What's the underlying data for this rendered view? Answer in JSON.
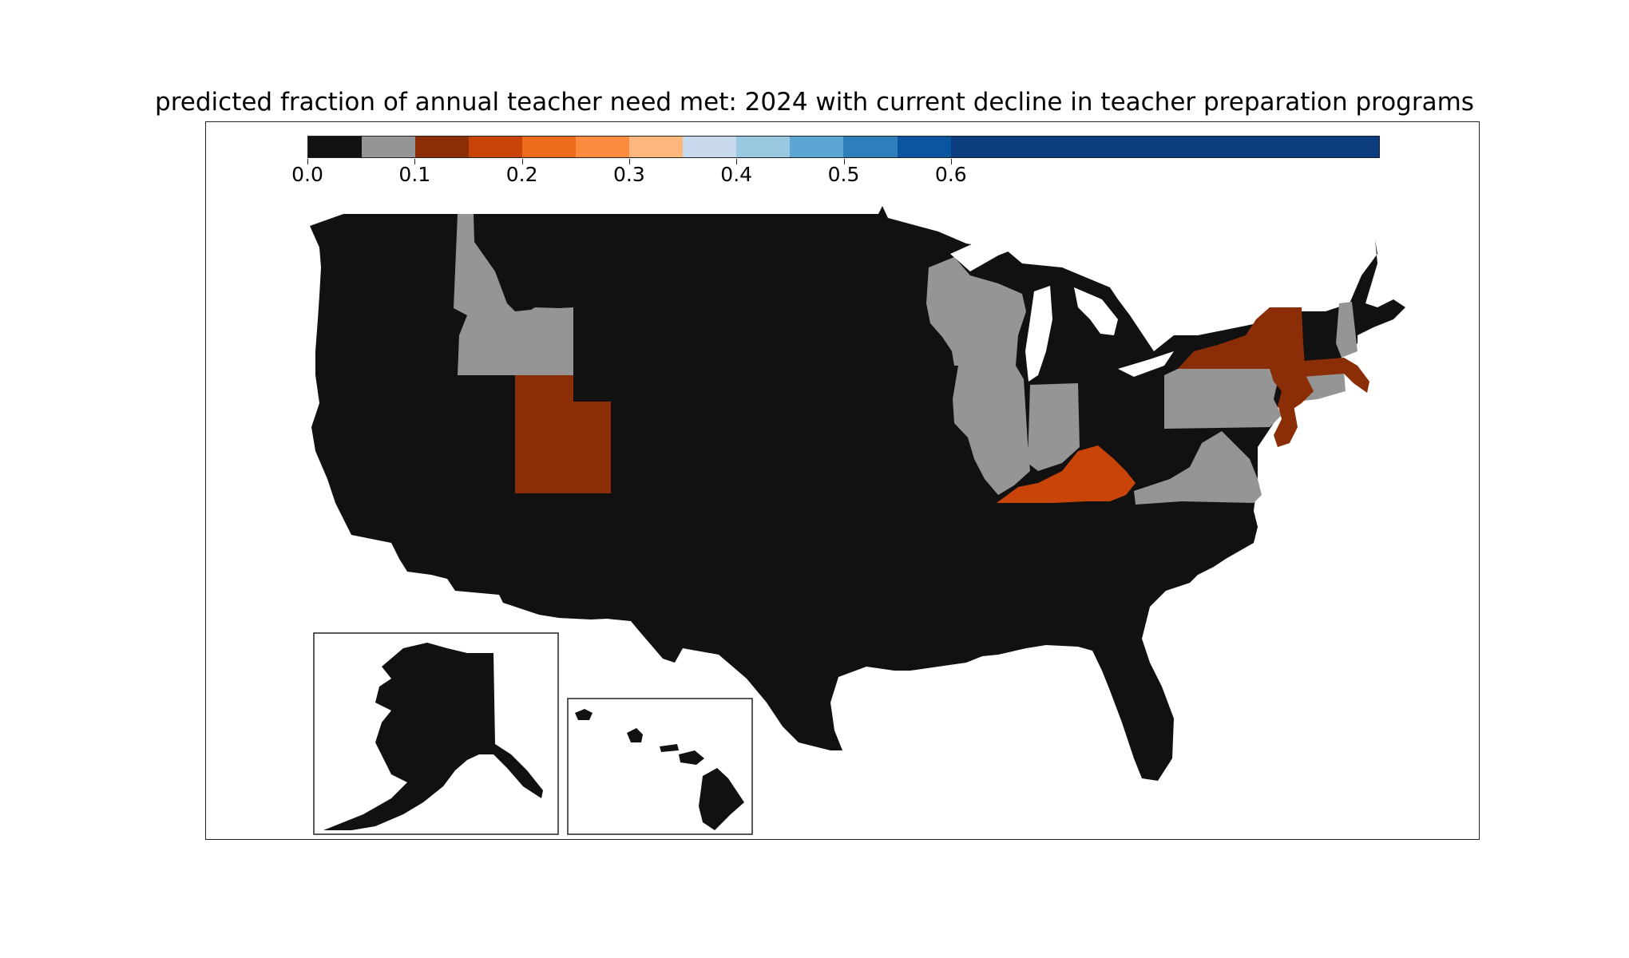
{
  "title": "predicted fraction of annual teacher need met: 2024 with current decline in teacher preparation programs",
  "colorbar": {
    "min": 0.0,
    "max": 0.6,
    "ticks": [
      "0.0",
      "0.1",
      "0.2",
      "0.3",
      "0.4",
      "0.5",
      "0.6"
    ],
    "bins": [
      {
        "range": [
          0.0,
          0.05
        ],
        "color": "#111111"
      },
      {
        "range": [
          0.05,
          0.1
        ],
        "color": "#959595"
      },
      {
        "range": [
          0.1,
          0.15
        ],
        "color": "#8b2d06"
      },
      {
        "range": [
          0.15,
          0.2
        ],
        "color": "#c94408"
      },
      {
        "range": [
          0.2,
          0.25
        ],
        "color": "#ec6a1c"
      },
      {
        "range": [
          0.25,
          0.3
        ],
        "color": "#f98c3d"
      },
      {
        "range": [
          0.3,
          0.35
        ],
        "color": "#fdb67c"
      },
      {
        "range": [
          0.35,
          0.4
        ],
        "color": "#c8d9ee"
      },
      {
        "range": [
          0.4,
          0.45
        ],
        "color": "#9ac8e0"
      },
      {
        "range": [
          0.45,
          0.5
        ],
        "color": "#5da5d2"
      },
      {
        "range": [
          0.5,
          0.55
        ],
        "color": "#2e7ebc"
      },
      {
        "range": [
          0.55,
          0.6
        ],
        "color": "#0b559e"
      },
      {
        "range": [
          0.6,
          1.0
        ],
        "color": "#0b3d7e"
      }
    ]
  },
  "state_categories": {
    "black_0_to_0.05": [
      "WA",
      "OR",
      "CA",
      "NV",
      "MT",
      "WY",
      "CO",
      "AZ",
      "NM",
      "ND",
      "SD",
      "NE",
      "KS",
      "OK",
      "TX",
      "MN",
      "IA",
      "MO",
      "AR",
      "LA",
      "MI",
      "OH",
      "WV",
      "MD",
      "DE",
      "NC",
      "SC",
      "GA",
      "FL",
      "AL",
      "MS",
      "TN",
      "VT",
      "ME",
      "AK",
      "HI"
    ],
    "gray_0.05_to_0.1": [
      "ID",
      "WI",
      "IL",
      "IN",
      "PA",
      "VA",
      "NH",
      "CT",
      "RI"
    ],
    "dark_orange_0.1_to_0.15": [
      "UT",
      "NY",
      "NJ",
      "MA"
    ],
    "orange_0.15_to_0.2": [
      "KY"
    ]
  },
  "insets": [
    "Alaska",
    "Hawaii"
  ]
}
